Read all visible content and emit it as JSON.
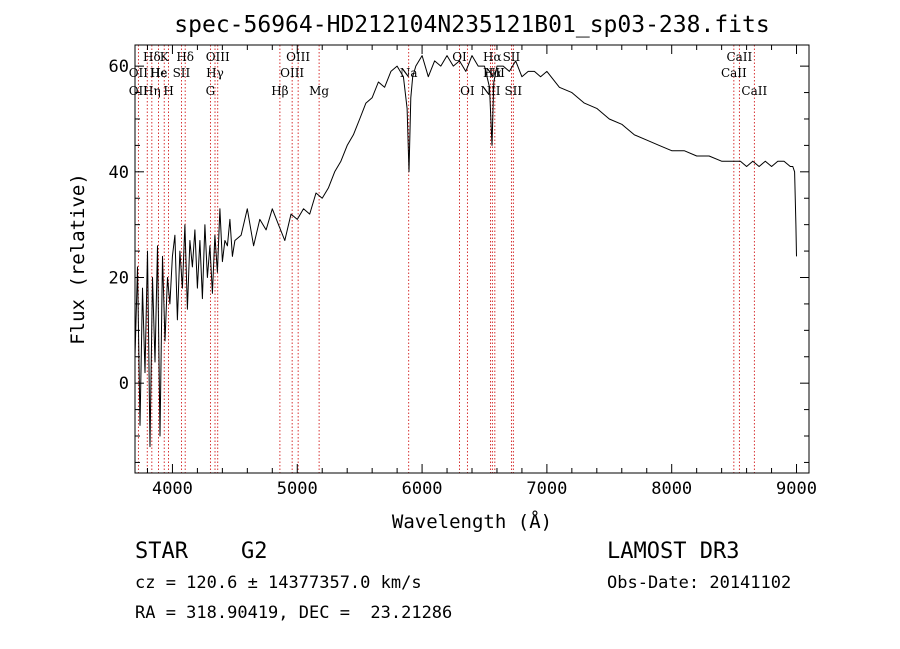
{
  "chart_data": {
    "type": "line",
    "title": "spec-56964-HD212104N235121B01_sp03-238.fits",
    "xlabel": "Wavelength (Å)",
    "ylabel": "Flux (relative)",
    "xlim": [
      3700,
      9100
    ],
    "ylim": [
      -17,
      64
    ],
    "xticks": [
      4000,
      5000,
      6000,
      7000,
      8000,
      9000
    ],
    "yticks": [
      0,
      20,
      40,
      60
    ],
    "series": [
      {
        "name": "flux",
        "x": [
          3700,
          3720,
          3740,
          3760,
          3780,
          3800,
          3820,
          3840,
          3860,
          3880,
          3900,
          3920,
          3940,
          3960,
          3980,
          4000,
          4020,
          4040,
          4060,
          4080,
          4100,
          4120,
          4140,
          4160,
          4180,
          4200,
          4220,
          4240,
          4260,
          4280,
          4300,
          4320,
          4340,
          4360,
          4380,
          4400,
          4420,
          4440,
          4460,
          4480,
          4500,
          4550,
          4600,
          4650,
          4700,
          4750,
          4800,
          4850,
          4900,
          4950,
          5000,
          5050,
          5100,
          5150,
          5200,
          5250,
          5300,
          5350,
          5400,
          5450,
          5500,
          5550,
          5600,
          5650,
          5700,
          5750,
          5800,
          5850,
          5880,
          5895,
          5910,
          5925,
          5950,
          6000,
          6050,
          6100,
          6150,
          6200,
          6250,
          6300,
          6350,
          6400,
          6450,
          6500,
          6540,
          6560,
          6575,
          6600,
          6650,
          6700,
          6750,
          6800,
          6850,
          6900,
          6950,
          7000,
          7100,
          7200,
          7300,
          7400,
          7500,
          7600,
          7700,
          7800,
          7900,
          8000,
          8100,
          8200,
          8300,
          8400,
          8500,
          8550,
          8600,
          8650,
          8700,
          8750,
          8800,
          8850,
          8900,
          8950,
          8970,
          8985,
          8995,
          9000
        ],
        "y": [
          5,
          22,
          -8,
          18,
          2,
          25,
          -12,
          20,
          4,
          26,
          -10,
          24,
          8,
          20,
          15,
          24,
          28,
          12,
          25,
          18,
          30,
          14,
          27,
          22,
          29,
          18,
          27,
          16,
          30,
          20,
          26,
          17,
          28,
          21,
          33,
          23,
          27,
          26,
          31,
          24,
          27,
          28,
          33,
          26,
          31,
          29,
          33,
          30,
          27,
          32,
          31,
          33,
          32,
          36,
          35,
          37,
          40,
          42,
          45,
          47,
          50,
          53,
          54,
          57,
          56,
          59,
          60,
          58,
          52,
          40,
          54,
          58,
          60,
          62,
          58,
          61,
          60,
          62,
          60,
          61,
          59,
          62,
          60,
          60,
          56,
          45,
          57,
          60,
          60,
          59,
          61,
          58,
          59,
          59,
          58,
          59,
          56,
          55,
          53,
          52,
          50,
          49,
          47,
          46,
          45,
          44,
          44,
          43,
          43,
          42,
          42,
          42,
          41,
          42,
          41,
          42,
          41,
          42,
          42,
          41,
          41,
          40,
          30,
          24
        ]
      }
    ],
    "line_ids": [
      {
        "label": "Hδ",
        "x": 3835,
        "row": 0
      },
      {
        "label": "OII",
        "x": 3727,
        "row": 1
      },
      {
        "label": "OII",
        "x": 3727,
        "row": 2
      },
      {
        "label": "Hε",
        "x": 3889,
        "row": 1
      },
      {
        "label": "Hη",
        "x": 3835,
        "row": 2
      },
      {
        "label": "K",
        "x": 3934,
        "row": 0
      },
      {
        "label": "He",
        "x": 3889,
        "row": 1
      },
      {
        "label": "H",
        "x": 3969,
        "row": 2
      },
      {
        "label": "Hδ",
        "x": 4102,
        "row": 0
      },
      {
        "label": "SII",
        "x": 4072,
        "row": 1
      },
      {
        "label": "OIII",
        "x": 4363,
        "row": 0
      },
      {
        "label": "Hγ",
        "x": 4341,
        "row": 1
      },
      {
        "label": "G",
        "x": 4304,
        "row": 2
      },
      {
        "label": "Hβ",
        "x": 4861,
        "row": 2
      },
      {
        "label": "OIII",
        "x": 5007,
        "row": 0
      },
      {
        "label": "OIII",
        "x": 4959,
        "row": 1
      },
      {
        "label": "Mg",
        "x": 5175,
        "row": 2
      },
      {
        "label": "Na",
        "x": 5893,
        "row": 1
      },
      {
        "label": "OI",
        "x": 6300,
        "row": 0
      },
      {
        "label": "OI",
        "x": 6363,
        "row": 2
      },
      {
        "label": "Hα",
        "x": 6563,
        "row": 0
      },
      {
        "label": "SII",
        "x": 6716,
        "row": 0
      },
      {
        "label": "NII",
        "x": 6583,
        "row": 1
      },
      {
        "label": "Hα",
        "x": 6563,
        "row": 1
      },
      {
        "label": "NII",
        "x": 6548,
        "row": 2
      },
      {
        "label": "SII",
        "x": 6731,
        "row": 2
      },
      {
        "label": "CaII",
        "x": 8542,
        "row": 0
      },
      {
        "label": "CaII",
        "x": 8498,
        "row": 1
      },
      {
        "label": "CaII",
        "x": 8662,
        "row": 2
      }
    ],
    "marker_lines": [
      3727,
      3798,
      3835,
      3889,
      3934,
      3969,
      4072,
      4102,
      4304,
      4341,
      4363,
      4861,
      4959,
      5007,
      5175,
      5893,
      6300,
      6363,
      6548,
      6563,
      6583,
      6716,
      6731,
      8498,
      8542,
      8662
    ]
  },
  "footer": {
    "object_class": "STAR",
    "subclass": "G2",
    "survey": "LAMOST DR3",
    "redshift": "cz = 120.6 ± 14377357.0 km/s",
    "obs_date": "Obs-Date: 20141102",
    "coords": "RA = 318.90419, DEC =  23.21286"
  },
  "colors": {
    "axis": "#000000",
    "spectrum": "#000000",
    "marker": "#cc0000"
  }
}
